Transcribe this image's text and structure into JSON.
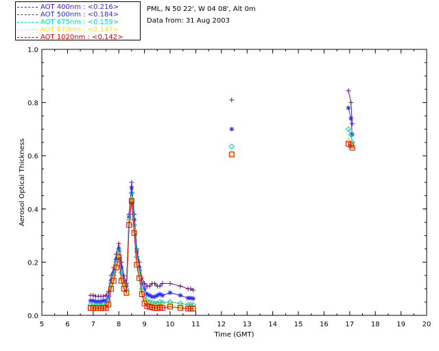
{
  "header": {
    "location": "PML, N 50 22', W 04 08', Alt 0m",
    "date": "Data from: 31 Aug 2003"
  },
  "legend": [
    {
      "label": "AOT  400nm : <0.216>",
      "color": "#3c1ec8"
    },
    {
      "label": "AOT  500nm : <0.184>",
      "color": "#2828ff"
    },
    {
      "label": "AOT  675nm : <0.159>",
      "color": "#00e0b0"
    },
    {
      "label": "AOT  870nm : <0.147>",
      "color": "#ffe000"
    },
    {
      "label": "AOT 1020nm : <0.142>",
      "color": "#e00000"
    }
  ],
  "chart_data": {
    "type": "line",
    "xlabel": "Time (GMT)",
    "ylabel": "Aerosol Optical Thickness",
    "xlim": [
      5,
      20
    ],
    "ylim": [
      0.0,
      1.0
    ],
    "xticks": [
      "5",
      "6",
      "7",
      "8",
      "9",
      "10",
      "11",
      "12",
      "13",
      "14",
      "15",
      "16",
      "17",
      "18",
      "19",
      "20"
    ],
    "yticks": [
      "0.0",
      "0.2",
      "0.4",
      "0.6",
      "0.8",
      "1.0"
    ],
    "grid": false,
    "series": [
      {
        "name": "AOT 400nm",
        "color": "#6a0a8a",
        "marker": "plus",
        "x": [
          6.9,
          7.0,
          7.1,
          7.2,
          7.3,
          7.4,
          7.5,
          7.6,
          7.7,
          7.8,
          7.9,
          8.0,
          8.1,
          8.2,
          8.3,
          8.4,
          8.5,
          8.6,
          8.7,
          8.8,
          8.9,
          9.0,
          9.1,
          9.2,
          9.3,
          9.4,
          9.5,
          9.6,
          9.7,
          10.0,
          10.4,
          10.7,
          10.8,
          10.9,
          12.4,
          16.95,
          17.05,
          17.1
        ],
        "y": [
          0.075,
          0.075,
          0.072,
          0.072,
          0.072,
          0.072,
          0.075,
          0.09,
          0.15,
          0.18,
          0.23,
          0.27,
          0.2,
          0.15,
          0.12,
          0.38,
          0.5,
          0.38,
          0.25,
          0.2,
          0.14,
          0.12,
          0.11,
          0.11,
          0.12,
          0.12,
          0.11,
          0.11,
          0.12,
          0.12,
          0.11,
          0.1,
          0.1,
          0.095,
          0.81,
          0.845,
          0.8,
          0.72
        ],
        "connect_to_index": 34
      },
      {
        "name": "AOT 500nm",
        "color": "#2828ff",
        "marker": "asterisk",
        "x": [
          6.9,
          7.0,
          7.1,
          7.2,
          7.3,
          7.4,
          7.5,
          7.6,
          7.7,
          7.8,
          7.9,
          8.0,
          8.1,
          8.2,
          8.3,
          8.4,
          8.5,
          8.6,
          8.7,
          8.8,
          8.9,
          9.0,
          9.1,
          9.2,
          9.3,
          9.4,
          9.5,
          9.6,
          9.7,
          10.0,
          10.4,
          10.7,
          10.8,
          10.9,
          12.4,
          16.95,
          17.05,
          17.1
        ],
        "y": [
          0.055,
          0.055,
          0.052,
          0.052,
          0.052,
          0.055,
          0.055,
          0.07,
          0.13,
          0.16,
          0.21,
          0.25,
          0.18,
          0.13,
          0.11,
          0.37,
          0.48,
          0.36,
          0.24,
          0.18,
          0.12,
          0.1,
          0.08,
          0.075,
          0.07,
          0.07,
          0.075,
          0.08,
          0.075,
          0.085,
          0.075,
          0.065,
          0.065,
          0.063,
          0.7,
          0.78,
          0.74,
          0.68
        ],
        "connect_to_index": 34
      },
      {
        "name": "AOT 675nm",
        "color": "#00c8a0",
        "marker": "diamond",
        "x": [
          6.9,
          7.0,
          7.1,
          7.2,
          7.3,
          7.4,
          7.5,
          7.6,
          7.7,
          7.8,
          7.9,
          8.0,
          8.1,
          8.2,
          8.3,
          8.4,
          8.5,
          8.6,
          8.7,
          8.8,
          8.9,
          9.0,
          9.1,
          9.2,
          9.3,
          9.4,
          9.5,
          9.6,
          9.7,
          10.0,
          10.4,
          10.7,
          10.8,
          10.9,
          12.4,
          16.95,
          17.05,
          17.1
        ],
        "y": [
          0.04,
          0.04,
          0.038,
          0.038,
          0.038,
          0.04,
          0.04,
          0.055,
          0.12,
          0.15,
          0.2,
          0.24,
          0.16,
          0.12,
          0.1,
          0.36,
          0.46,
          0.34,
          0.22,
          0.17,
          0.1,
          0.07,
          0.055,
          0.05,
          0.048,
          0.045,
          0.045,
          0.05,
          0.048,
          0.05,
          0.045,
          0.04,
          0.04,
          0.04,
          0.635,
          0.7,
          0.68,
          0.65
        ],
        "connect_to_index": 34
      },
      {
        "name": "AOT 870nm",
        "color": "#ffd000",
        "marker": "triangle",
        "x": [
          6.9,
          7.0,
          7.1,
          7.2,
          7.3,
          7.4,
          7.5,
          7.6,
          7.7,
          7.8,
          7.9,
          8.0,
          8.1,
          8.2,
          8.3,
          8.4,
          8.5,
          8.6,
          8.7,
          8.8,
          8.9,
          9.0,
          9.1,
          9.2,
          9.3,
          9.4,
          9.5,
          9.6,
          9.7,
          10.0,
          10.4,
          10.7,
          10.8,
          10.9,
          12.4,
          16.95,
          17.05,
          17.1
        ],
        "y": [
          0.032,
          0.032,
          0.03,
          0.03,
          0.03,
          0.032,
          0.032,
          0.045,
          0.11,
          0.14,
          0.19,
          0.23,
          0.14,
          0.11,
          0.09,
          0.35,
          0.44,
          0.32,
          0.2,
          0.15,
          0.09,
          0.055,
          0.045,
          0.04,
          0.038,
          0.036,
          0.035,
          0.038,
          0.036,
          0.04,
          0.035,
          0.03,
          0.03,
          0.03,
          0.61,
          0.66,
          0.645,
          0.635
        ],
        "connect_to_index": 34
      },
      {
        "name": "AOT 1020nm",
        "color": "#e00000",
        "marker": "square",
        "x": [
          6.9,
          7.0,
          7.1,
          7.2,
          7.3,
          7.4,
          7.5,
          7.6,
          7.7,
          7.8,
          7.9,
          8.0,
          8.1,
          8.2,
          8.3,
          8.4,
          8.5,
          8.6,
          8.7,
          8.8,
          8.9,
          9.0,
          9.1,
          9.2,
          9.3,
          9.4,
          9.5,
          9.6,
          9.7,
          10.0,
          10.4,
          10.7,
          10.8,
          10.9,
          12.4,
          16.95,
          17.05,
          17.1
        ],
        "y": [
          0.028,
          0.028,
          0.027,
          0.027,
          0.027,
          0.028,
          0.028,
          0.04,
          0.1,
          0.13,
          0.18,
          0.22,
          0.13,
          0.1,
          0.085,
          0.34,
          0.43,
          0.31,
          0.19,
          0.14,
          0.08,
          0.045,
          0.035,
          0.032,
          0.03,
          0.028,
          0.027,
          0.03,
          0.028,
          0.033,
          0.028,
          0.025,
          0.025,
          0.025,
          0.605,
          0.645,
          0.64,
          0.63
        ],
        "connect_to_index": 34
      }
    ]
  }
}
